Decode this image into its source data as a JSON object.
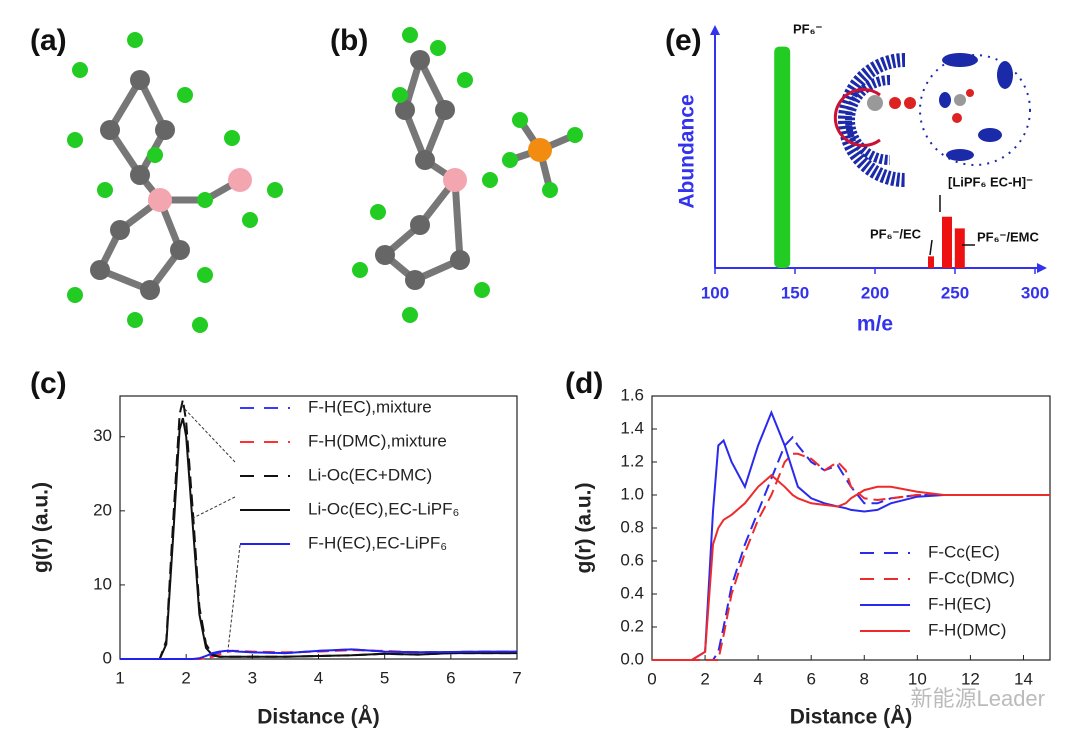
{
  "panel_labels": [
    "(a)",
    "(b)",
    "(c)",
    "(d)",
    "(e)"
  ],
  "watermark": "新能源Leader",
  "chart_data": [
    {
      "type": "line",
      "xlabel": "Distance (Å)",
      "ylabel": "g(r) (a.u.)",
      "xlim": [
        1,
        7
      ],
      "ylim": [
        0,
        35.5
      ],
      "xticks": [
        1,
        2,
        3,
        4,
        5,
        6,
        7
      ],
      "yticks": [
        0,
        10,
        20,
        30
      ],
      "x": [
        1,
        1.5,
        1.6,
        1.7,
        1.8,
        1.9,
        1.95,
        2.0,
        2.1,
        2.2,
        2.3,
        2.4,
        2.5,
        2.6,
        2.7,
        2.8,
        3,
        3.5,
        4,
        4.5,
        5,
        5.5,
        6,
        6.5,
        7
      ],
      "series": [
        {
          "name": "F-H(EC),mixture",
          "color": "#3a3aff",
          "dash": true,
          "values": [
            0,
            0,
            0,
            0,
            0,
            0,
            0,
            0,
            0,
            0,
            0.2,
            0.5,
            0.8,
            1,
            1.1,
            1,
            0.9,
            0.8,
            1.1,
            1.3,
            1,
            0.9,
            0.95,
            1,
            1
          ]
        },
        {
          "name": "F-H(DMC),mixture",
          "color": "#ff3030",
          "dash": true,
          "values": [
            0,
            0,
            0,
            0,
            0,
            0,
            0,
            0,
            0,
            0,
            0.1,
            0.3,
            0.6,
            0.9,
            1.1,
            1.1,
            1,
            0.9,
            1,
            1.2,
            1.1,
            0.9,
            0.95,
            1,
            1
          ]
        },
        {
          "name": "Li-Oc(EC+DMC)",
          "color": "#111111",
          "dash": true,
          "values": [
            0,
            0,
            0,
            2.5,
            18,
            33,
            35,
            32,
            20,
            7,
            2,
            0.6,
            0.3,
            0.3,
            0.3,
            0.3,
            0.3,
            0.3,
            0.4,
            0.5,
            0.7,
            0.6,
            0.8,
            0.8,
            0.8
          ]
        },
        {
          "name": "Li-Oc(EC),EC-LiPF₆",
          "color": "#111111",
          "dash": false,
          "values": [
            0,
            0,
            0,
            2,
            16,
            31,
            32.5,
            30,
            18,
            6,
            1.5,
            0.5,
            0.3,
            0.3,
            0.3,
            0.3,
            0.3,
            0.3,
            0.4,
            0.5,
            0.7,
            0.6,
            0.8,
            0.8,
            0.8
          ]
        },
        {
          "name": "F-H(EC),EC-LiPF₆",
          "color": "#2222ee",
          "dash": false,
          "values": [
            0,
            0,
            0,
            0,
            0,
            0,
            0,
            0,
            0,
            0.1,
            0.4,
            0.8,
            1,
            1.1,
            1.1,
            1,
            0.9,
            0.8,
            1.1,
            1.3,
            1,
            0.9,
            0.95,
            1,
            1
          ]
        }
      ]
    },
    {
      "type": "line",
      "xlabel": "Distance (Å)",
      "ylabel": "g(r) (a.u.)",
      "xlim": [
        0,
        15
      ],
      "ylim": [
        0,
        1.6
      ],
      "xticks": [
        0,
        2,
        4,
        6,
        8,
        10,
        12,
        14
      ],
      "yticks": [
        {
          "value": 0,
          "label": "0.0"
        },
        0.2,
        0.4,
        0.6,
        0.8,
        {
          "value": 1,
          "label": "1.0"
        },
        1.2,
        1.4,
        1.6
      ],
      "x": [
        0,
        1,
        1.5,
        2,
        2.3,
        2.5,
        2.7,
        3,
        3.5,
        4,
        4.5,
        5,
        5.3,
        5.5,
        6,
        6.5,
        7,
        7.3,
        7.5,
        8,
        8.5,
        9,
        10,
        11,
        12,
        13,
        14,
        15
      ],
      "series": [
        {
          "name": "F-Cc(EC)",
          "color": "#2a2aee",
          "dash": true,
          "values": [
            0,
            0,
            0,
            0,
            0,
            0.05,
            0.2,
            0.45,
            0.7,
            0.9,
            1.1,
            1.3,
            1.35,
            1.3,
            1.2,
            1.15,
            1.18,
            1.1,
            1.05,
            0.95,
            0.95,
            0.98,
            1,
            1,
            1,
            1,
            1,
            1
          ]
        },
        {
          "name": "F-Cc(DMC)",
          "color": "#ee2a2a",
          "dash": true,
          "values": [
            0,
            0,
            0,
            0,
            0,
            0,
            0.15,
            0.4,
            0.65,
            0.85,
            1,
            1.2,
            1.25,
            1.25,
            1.22,
            1.15,
            1.2,
            1.15,
            1.05,
            0.98,
            0.97,
            0.98,
            1,
            1,
            1,
            1,
            1,
            1
          ]
        },
        {
          "name": "F-H(EC)",
          "color": "#2a2aee",
          "dash": false,
          "values": [
            0,
            0,
            0,
            0.05,
            0.9,
            1.3,
            1.33,
            1.2,
            1.05,
            1.3,
            1.5,
            1.3,
            1.15,
            1.05,
            0.98,
            0.95,
            0.93,
            0.92,
            0.91,
            0.9,
            0.91,
            0.95,
            0.99,
            1,
            1,
            1,
            1,
            1
          ]
        },
        {
          "name": "F-H(DMC)",
          "color": "#ee2a2a",
          "dash": false,
          "values": [
            0,
            0,
            0,
            0.05,
            0.7,
            0.8,
            0.85,
            0.88,
            0.95,
            1.05,
            1.12,
            1.05,
            1,
            0.98,
            0.95,
            0.94,
            0.93,
            0.95,
            0.98,
            1.03,
            1.05,
            1.05,
            1.02,
            1,
            1,
            1,
            1,
            1
          ]
        }
      ]
    },
    {
      "type": "bar",
      "xlabel": "m/e",
      "ylabel": "Abundance",
      "xlim": [
        100,
        300
      ],
      "ylim": [
        0,
        100
      ],
      "xticks": [
        100,
        150,
        200,
        250,
        300
      ],
      "x": [
        142,
        235,
        245,
        253
      ],
      "values": [
        95,
        5,
        22,
        17
      ],
      "colors": [
        "#22cc22",
        "#ee1111",
        "#ee1111",
        "#ee1111"
      ],
      "axis_color": "#3333ee",
      "annotations": [
        "PF₆⁻",
        "PF₆⁻/EC",
        "[LiPF₆ EC-H]⁻",
        "PF₆⁻/EMC"
      ]
    }
  ]
}
